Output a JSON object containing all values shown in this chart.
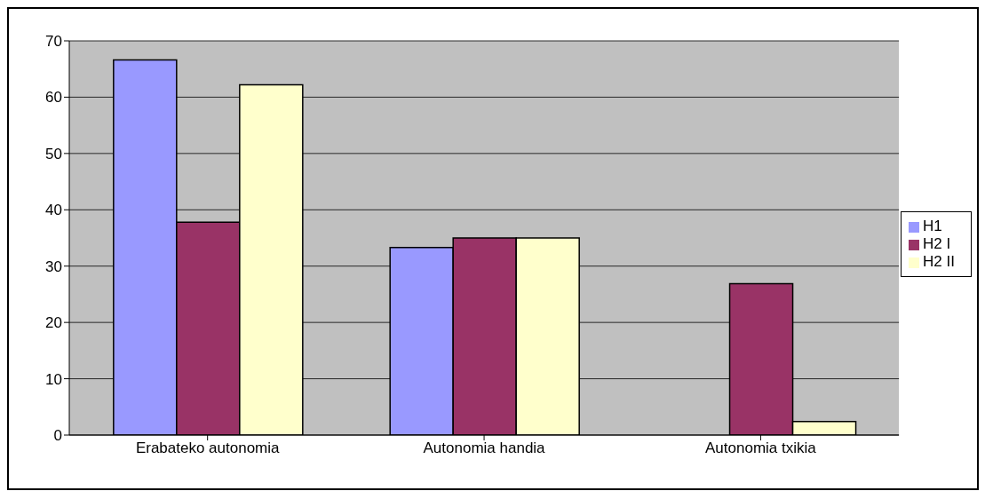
{
  "chart_data": {
    "type": "bar",
    "categories": [
      "Erabateko autonomia",
      "Autonomia handia",
      "Autonomia txikia"
    ],
    "series": [
      {
        "name": "H1",
        "color": "#9999ff",
        "values": [
          66.6,
          33.3,
          0
        ]
      },
      {
        "name": "H2 I",
        "color": "#993366",
        "values": [
          37.8,
          35,
          26.9
        ]
      },
      {
        "name": "H2 II",
        "color": "#ffffcc",
        "values": [
          62.2,
          35,
          2.4
        ]
      }
    ],
    "ylim": [
      0,
      70
    ],
    "yticks": [
      0,
      10,
      20,
      30,
      40,
      50,
      60,
      70
    ],
    "grid": "y",
    "legend": "right"
  }
}
